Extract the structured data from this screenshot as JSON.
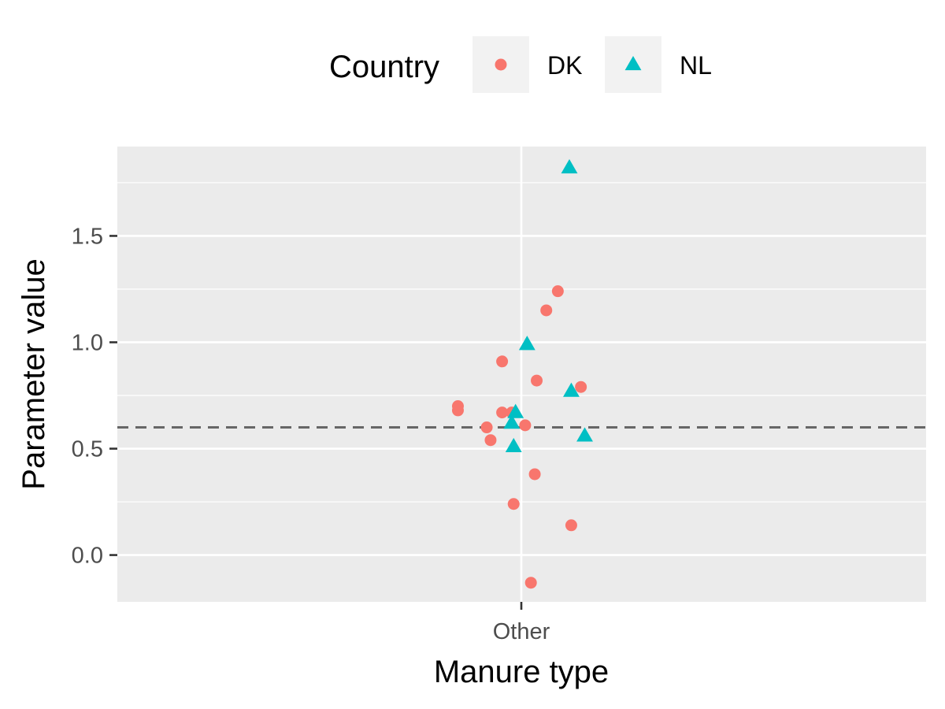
{
  "chart_data": {
    "type": "scatter",
    "xlabel": "Manure type",
    "ylabel": "Parameter value",
    "categories": [
      "Other"
    ],
    "ylim": [
      -0.22,
      1.92
    ],
    "yticks": [
      0.0,
      0.5,
      1.0,
      1.5
    ],
    "ytick_labels": [
      "0.0",
      "0.5",
      "1.0",
      "1.5"
    ],
    "grid": true,
    "legend": {
      "title": "Country",
      "placement": "top"
    },
    "reference_line": {
      "y": 0.6,
      "style": "dashed",
      "color": "#666666"
    },
    "series": [
      {
        "name": "DK",
        "marker": "circle",
        "color": "#F8766D",
        "points": [
          {
            "x_jitter": -0.33,
            "y": 0.7
          },
          {
            "x_jitter": -0.33,
            "y": 0.68
          },
          {
            "x_jitter": -0.18,
            "y": 0.6
          },
          {
            "x_jitter": -0.16,
            "y": 0.54
          },
          {
            "x_jitter": -0.1,
            "y": 0.91
          },
          {
            "x_jitter": -0.1,
            "y": 0.67
          },
          {
            "x_jitter": -0.05,
            "y": 0.67
          },
          {
            "x_jitter": -0.04,
            "y": 0.24
          },
          {
            "x_jitter": 0.02,
            "y": 0.61
          },
          {
            "x_jitter": 0.05,
            "y": -0.13
          },
          {
            "x_jitter": 0.07,
            "y": 0.38
          },
          {
            "x_jitter": 0.08,
            "y": 0.82
          },
          {
            "x_jitter": 0.13,
            "y": 1.15
          },
          {
            "x_jitter": 0.19,
            "y": 1.24
          },
          {
            "x_jitter": 0.26,
            "y": 0.14
          },
          {
            "x_jitter": 0.31,
            "y": 0.79
          }
        ]
      },
      {
        "name": "NL",
        "marker": "triangle",
        "color": "#00BFC4",
        "points": [
          {
            "x_jitter": -0.05,
            "y": 0.62
          },
          {
            "x_jitter": -0.03,
            "y": 0.67
          },
          {
            "x_jitter": -0.04,
            "y": 0.51
          },
          {
            "x_jitter": 0.03,
            "y": 0.99
          },
          {
            "x_jitter": 0.25,
            "y": 1.82
          },
          {
            "x_jitter": 0.26,
            "y": 0.77
          },
          {
            "x_jitter": 0.33,
            "y": 0.56
          }
        ]
      }
    ]
  }
}
